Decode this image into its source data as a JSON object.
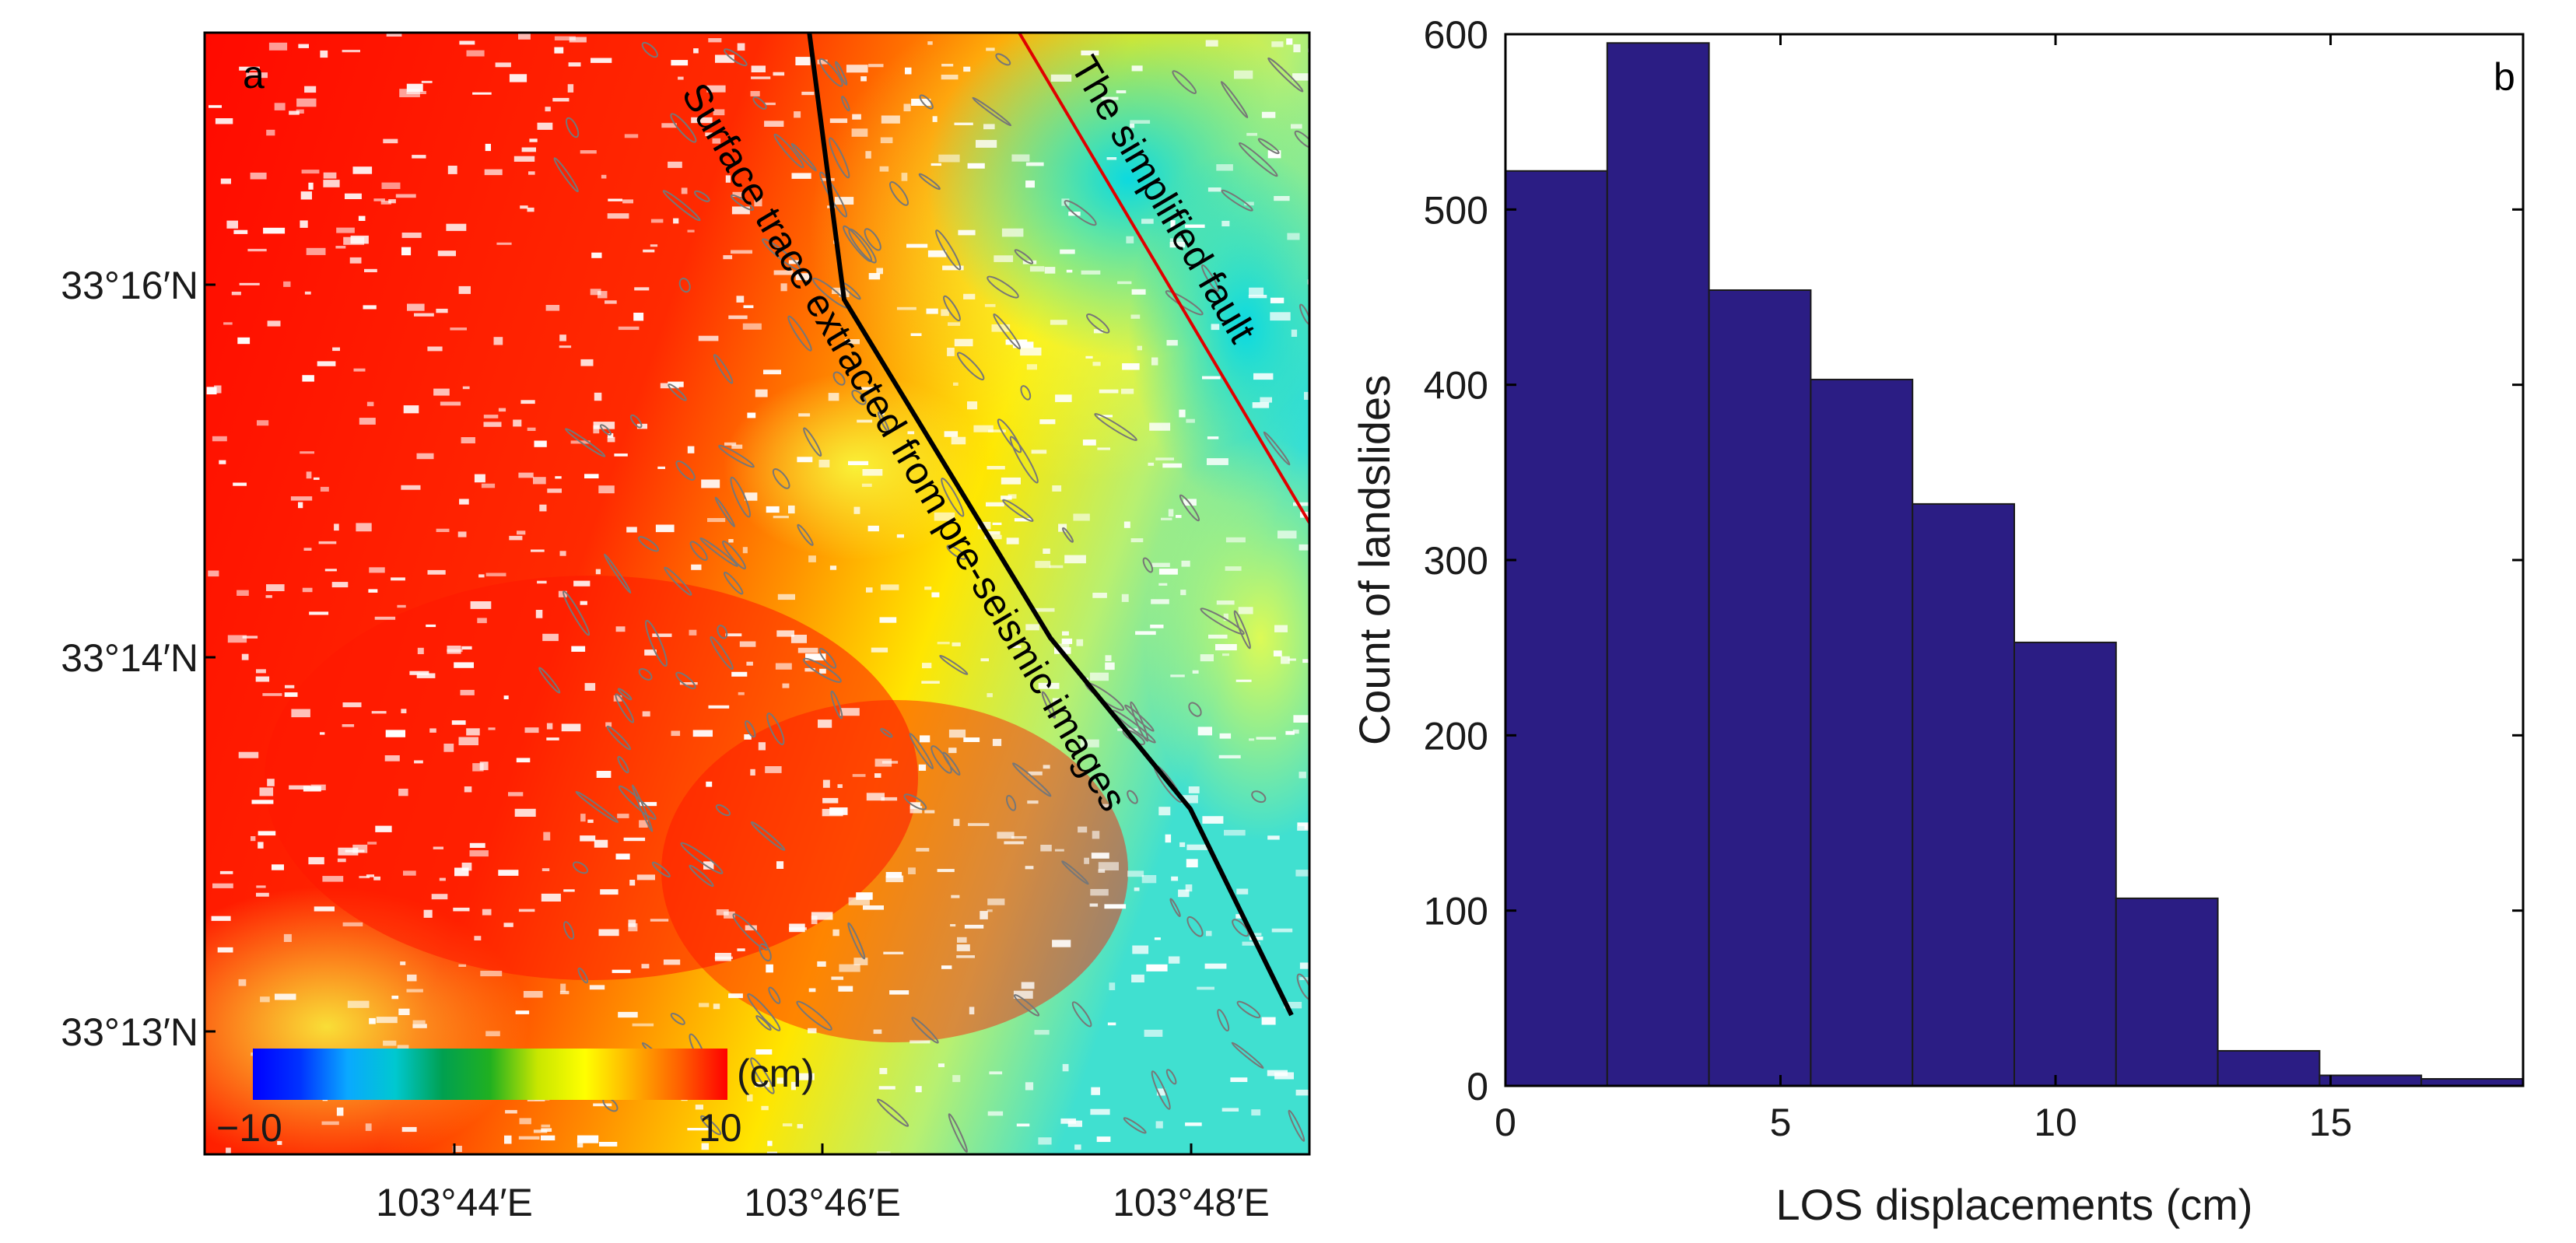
{
  "panel_a": {
    "label": "a",
    "y_ticks": [
      "33°16′N",
      "33°14′N",
      "33°13′N"
    ],
    "x_ticks": [
      "103°44′E",
      "103°46′E",
      "103°48′E"
    ],
    "annotation_trace": "Surface trace extracted from pre-seismic images",
    "annotation_fault": "The simplified fault",
    "colorbar": {
      "unit": "(cm)",
      "min_label": "−10",
      "max_label": "10",
      "colors": [
        "#0000ff",
        "#0033ff",
        "#0aa9ff",
        "#00c8d0",
        "#00a050",
        "#20b020",
        "#c8e600",
        "#ffff00",
        "#ffb000",
        "#ff6000",
        "#ff0000"
      ]
    },
    "trace_color": "#000000",
    "fault_color": "#e00000"
  },
  "chart_data": {
    "type": "bar",
    "title": "",
    "panel_label": "b",
    "xlabel": "LOS displacements (cm)",
    "ylabel": "Count of landslides",
    "bin_edges": [
      0,
      1.85,
      3.7,
      5.55,
      7.4,
      9.25,
      11.1,
      12.95,
      14.8,
      16.65,
      18.5
    ],
    "values": [
      522,
      595,
      454,
      403,
      332,
      253,
      107,
      20,
      6,
      4
    ],
    "xlim": [
      0,
      18.5
    ],
    "ylim": [
      0,
      600
    ],
    "xticks": [
      0,
      5,
      10,
      15
    ],
    "yticks": [
      0,
      100,
      200,
      300,
      400,
      500,
      600
    ],
    "bar_color": "#2b1d84",
    "grid": false
  }
}
